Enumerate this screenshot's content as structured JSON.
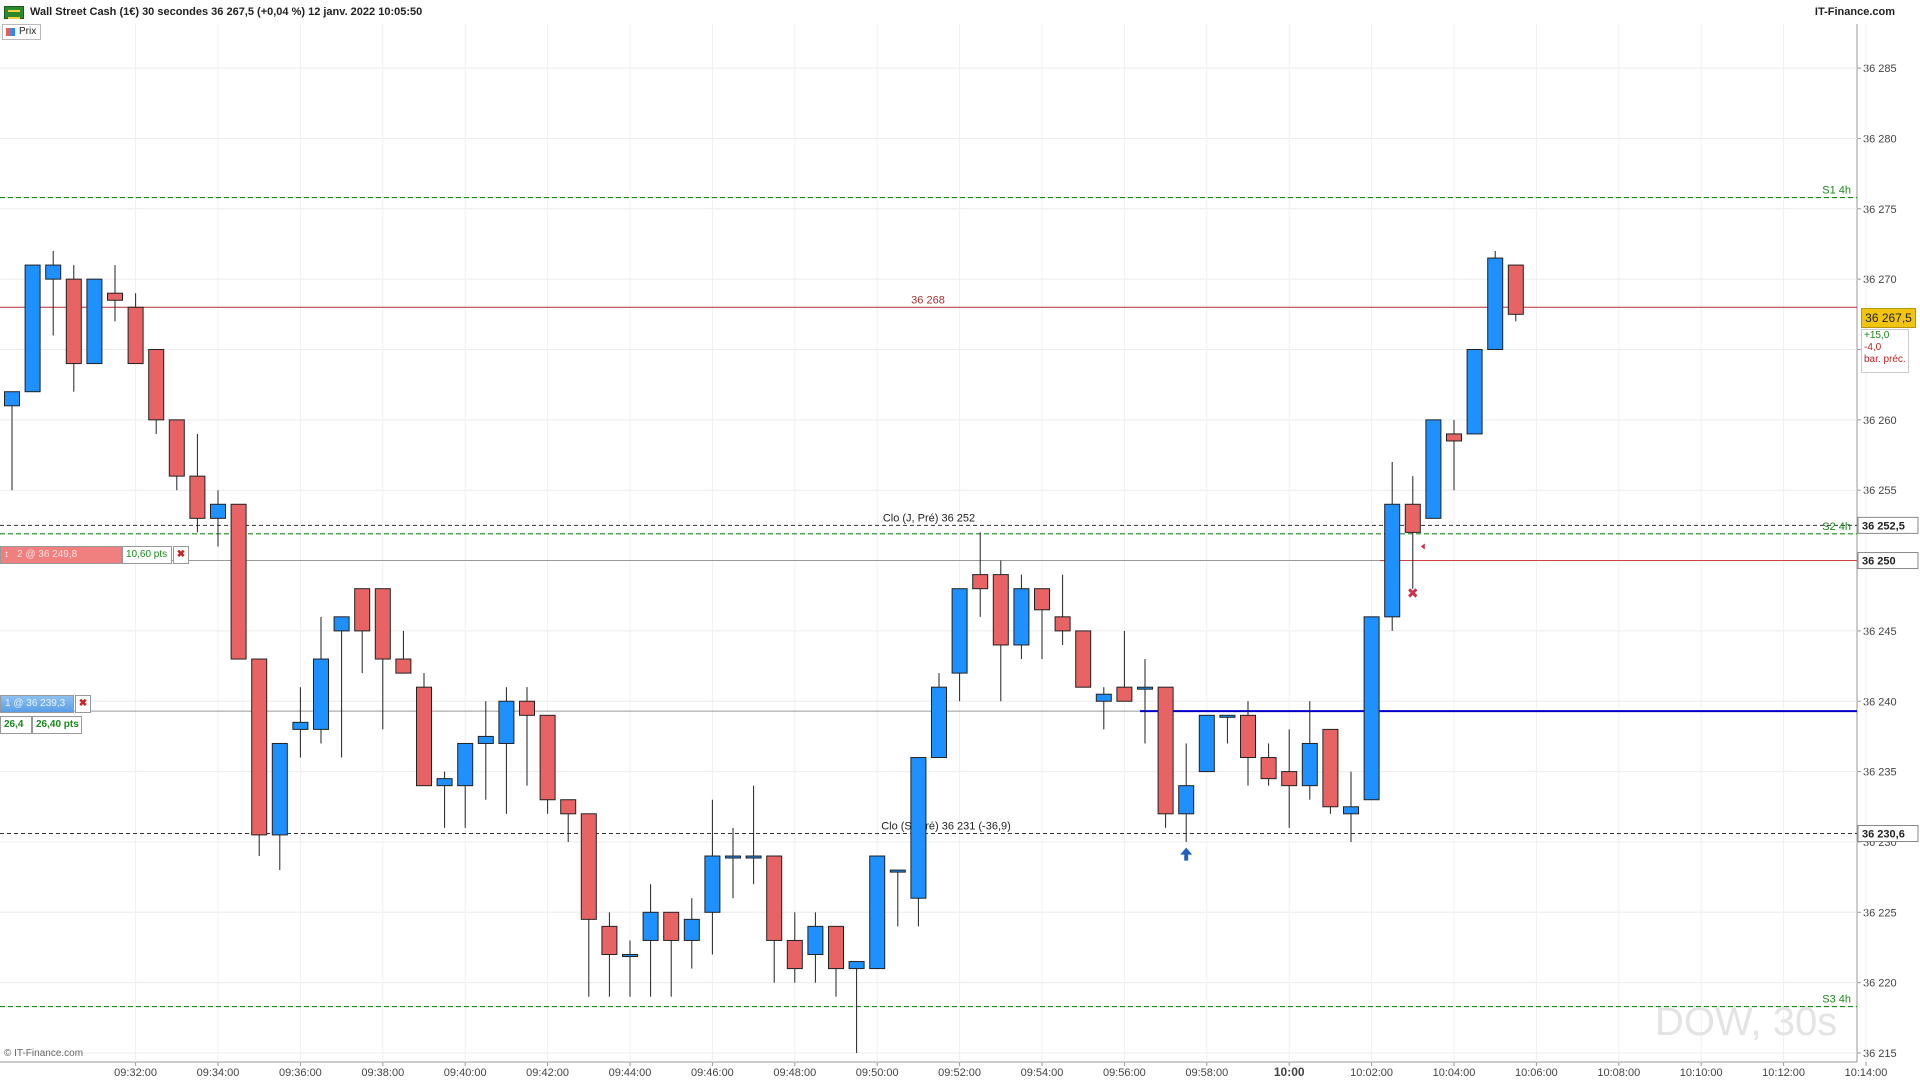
{
  "header": {
    "title": "Wall Street Cash (1€) 30 secondes 36 267,5 (+0,04 %) 12 janv. 2022 10:05:50",
    "site": "IT-Finance.com",
    "legend_label": "Prix"
  },
  "watermark": "DOW, 30s",
  "copyright": "© IT-Finance.com",
  "price_badge": {
    "main": "36 267,5",
    "plus": "+15,0",
    "minus": "-4,0",
    "minus_label": "bar. préc."
  },
  "colors": {
    "up": "#1e90ff",
    "down": "#e86464",
    "support": "#1b8a1b",
    "resistance": "#b03030",
    "blue_line": "#0000cc"
  },
  "orders": [
    {
      "id": "sell",
      "tag_text": "2 @ 36 249,8",
      "pts": "10,60 pts"
    },
    {
      "id": "buy",
      "tag_text": "1 @ 36 239,3",
      "qty": "26,4",
      "pts": "26,40 pts"
    }
  ],
  "chart_data": {
    "type": "candlestick",
    "ylim": [
      36215,
      36289
    ],
    "y_ticks": [
      36215,
      36220,
      36225,
      36230,
      36235,
      36240,
      36245,
      36250,
      36255,
      36260,
      36265,
      36270,
      36275,
      36280,
      36285
    ],
    "y_tick_labels": [
      "36 215",
      "36 220",
      "36 225",
      "36 230",
      "36 235",
      "36 240",
      "36 245",
      "36 250",
      "36 255",
      "36 260",
      "36 265",
      "36 270",
      "36 275",
      "36 280",
      "36 285"
    ],
    "x_labels": [
      {
        "i": 6,
        "label": "09:32:00"
      },
      {
        "i": 10,
        "label": "09:34:00"
      },
      {
        "i": 14,
        "label": "09:36:00"
      },
      {
        "i": 18,
        "label": "09:38:00"
      },
      {
        "i": 22,
        "label": "09:40:00"
      },
      {
        "i": 26,
        "label": "09:42:00"
      },
      {
        "i": 30,
        "label": "09:44:00"
      },
      {
        "i": 34,
        "label": "09:46:00"
      },
      {
        "i": 38,
        "label": "09:48:00"
      },
      {
        "i": 42,
        "label": "09:50:00"
      },
      {
        "i": 46,
        "label": "09:52:00"
      },
      {
        "i": 50,
        "label": "09:54:00"
      },
      {
        "i": 54,
        "label": "09:56:00"
      },
      {
        "i": 58,
        "label": "09:58:00"
      },
      {
        "i": 62,
        "label": "10:00"
      },
      {
        "i": 66,
        "label": "10:02:00"
      },
      {
        "i": 70,
        "label": "10:04:00"
      },
      {
        "i": 74,
        "label": "10:06:00"
      },
      {
        "i": 78,
        "label": "10:08:00"
      },
      {
        "i": 82,
        "label": "10:10:00"
      },
      {
        "i": 86,
        "label": "10:12:00"
      },
      {
        "i": 90,
        "label": "10:14:00"
      }
    ],
    "candles": [
      [
        36261,
        36262,
        36255,
        36262
      ],
      [
        36262,
        36271,
        36262,
        36271
      ],
      [
        36270,
        36272,
        36266,
        36271
      ],
      [
        36270,
        36271,
        36262,
        36264
      ],
      [
        36264,
        36270,
        36264,
        36270
      ],
      [
        36269,
        36271,
        36267,
        36268.5
      ],
      [
        36268,
        36269,
        36264,
        36264
      ],
      [
        36265,
        36265,
        36259,
        36260
      ],
      [
        36260,
        36260,
        36255,
        36256
      ],
      [
        36256,
        36259,
        36252,
        36253
      ],
      [
        36253,
        36255,
        36251,
        36254
      ],
      [
        36254,
        36254,
        36243,
        36243
      ],
      [
        36243,
        36243,
        36229,
        36230.5
      ],
      [
        36230.5,
        36237,
        36228,
        36237
      ],
      [
        36238,
        36241,
        36236,
        36238.5
      ],
      [
        36238,
        36246,
        36237,
        36243
      ],
      [
        36245,
        36246,
        36236,
        36246
      ],
      [
        36248,
        36248,
        36242,
        36245
      ],
      [
        36248,
        36248,
        36238,
        36243
      ],
      [
        36243,
        36245,
        36242,
        36242
      ],
      [
        36241,
        36242,
        36234,
        36234
      ],
      [
        36234,
        36235,
        36231,
        36234.5
      ],
      [
        36234,
        36237,
        36231,
        36237
      ],
      [
        36237,
        36240,
        36233,
        36237.5
      ],
      [
        36237,
        36241,
        36232,
        36240
      ],
      [
        36240,
        36241,
        36234,
        36239
      ],
      [
        36239,
        36239,
        36232,
        36233
      ],
      [
        36233,
        36233,
        36230,
        36232
      ],
      [
        36232,
        36232,
        36219,
        36224.5
      ],
      [
        36224,
        36225,
        36219,
        36222
      ],
      [
        36222,
        36223,
        36219,
        36222
      ],
      [
        36223,
        36227,
        36219,
        36225
      ],
      [
        36225,
        36225,
        36219,
        36223
      ],
      [
        36223,
        36226,
        36221,
        36224.5
      ],
      [
        36225,
        36233,
        36222,
        36229
      ],
      [
        36229,
        36231,
        36226,
        36229
      ],
      [
        36229,
        36234,
        36227,
        36229
      ],
      [
        36229,
        36229,
        36220,
        36223
      ],
      [
        36223,
        36225,
        36220,
        36221
      ],
      [
        36222,
        36225,
        36220,
        36224
      ],
      [
        36224,
        36224,
        36219,
        36221
      ],
      [
        36221,
        36221,
        36215,
        36221.5
      ],
      [
        36221,
        36229,
        36221,
        36229
      ],
      [
        36228,
        36228,
        36224,
        36228
      ],
      [
        36226,
        36236,
        36224,
        36236
      ],
      [
        36236,
        36242,
        36236,
        36241
      ],
      [
        36242,
        36248,
        36240,
        36248
      ],
      [
        36249,
        36252,
        36246,
        36248
      ],
      [
        36249,
        36250,
        36240,
        36244
      ],
      [
        36244,
        36249,
        36243,
        36248
      ],
      [
        36248,
        36248,
        36243,
        36246.5
      ],
      [
        36246,
        36249,
        36244,
        36245
      ],
      [
        36245,
        36245,
        36241,
        36241
      ],
      [
        36240,
        36241,
        36238,
        36240.5
      ],
      [
        36241,
        36245,
        36240,
        36240
      ],
      [
        36241,
        36243,
        36237,
        36241
      ],
      [
        36241,
        36241,
        36231,
        36232
      ],
      [
        36232,
        36237,
        36230,
        36234
      ],
      [
        36235,
        36239,
        36235,
        36239
      ],
      [
        36239,
        36239,
        36237,
        36239
      ],
      [
        36239,
        36240,
        36234,
        36236
      ],
      [
        36236,
        36237,
        36234,
        36234.5
      ],
      [
        36235,
        36238,
        36231,
        36234
      ],
      [
        36234,
        36240,
        36233,
        36237
      ],
      [
        36238,
        36238,
        36232,
        36232.5
      ],
      [
        36232,
        36235,
        36230,
        36232.5
      ],
      [
        36233,
        36246,
        36233,
        36246
      ],
      [
        36246,
        36257,
        36245,
        36254
      ],
      [
        36254,
        36256,
        36248,
        36252
      ],
      [
        36253,
        36260,
        36253,
        36260
      ],
      [
        36259,
        36260,
        36255,
        36258.5
      ],
      [
        36259,
        36265,
        36259,
        36265
      ],
      [
        36265,
        36272,
        36265,
        36271.5
      ],
      [
        36271,
        36271,
        36267,
        36267.5
      ]
    ],
    "levels": [
      {
        "value": 36275.8,
        "label": "S1 4h",
        "style": "support"
      },
      {
        "value": 36268,
        "label": "36 268",
        "style": "resistance"
      },
      {
        "value": 36252.5,
        "label": "Clo (J, Pré) 36 252",
        "axis_label": "36 252,5",
        "style": "black"
      },
      {
        "value": 36251.9,
        "label": "S2 4h",
        "style": "support"
      },
      {
        "value": 36250,
        "axis_label": "36 250",
        "style": "order_sell"
      },
      {
        "value": 36239.3,
        "style": "order_buy"
      },
      {
        "value": 36230.6,
        "label": "Clo (S, Pré) 36 231 (-36,9)",
        "axis_label": "36 230,6",
        "style": "black"
      },
      {
        "value": 36218.3,
        "label": "S3 4h",
        "style": "support"
      }
    ],
    "markers": [
      {
        "i": 57,
        "price": 36229.6,
        "type": "arrow-up"
      },
      {
        "i": 68,
        "price": 36247.7,
        "type": "x"
      },
      {
        "i": 68,
        "price": 36251,
        "type": "small-arrow"
      }
    ]
  }
}
